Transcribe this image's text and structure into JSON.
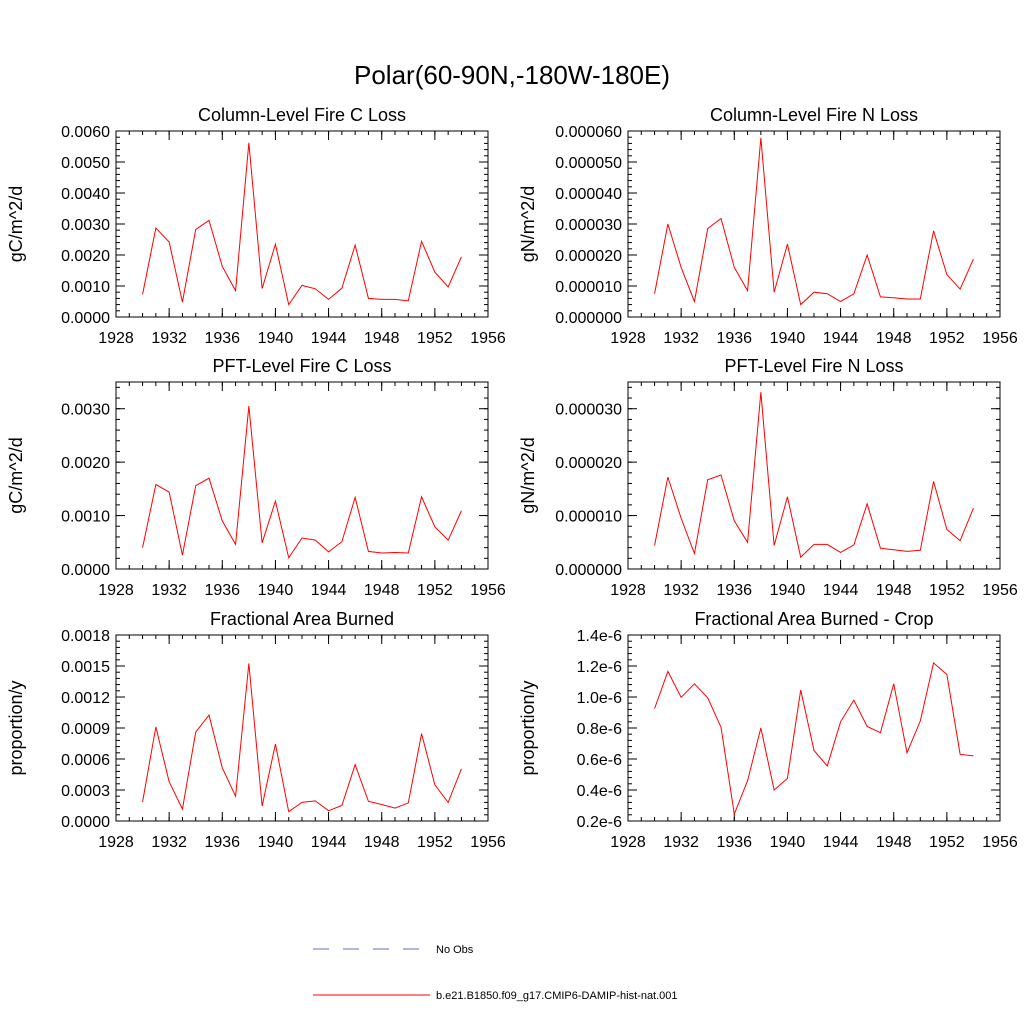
{
  "title": "Polar(60-90N,-180W-180E)",
  "colors": {
    "series": "#ff0000",
    "obs": "#5b6fc4",
    "axis": "#000000"
  },
  "legend": [
    {
      "label": "No Obs",
      "style": "dashed",
      "color": "#5b6fc4"
    },
    {
      "label": "b.e21.B1850.f09_g17.CMIP6-DAMIP-hist-nat.001",
      "style": "solid",
      "color": "#ff0000"
    }
  ],
  "chart_data": [
    {
      "type": "line",
      "title": "Column-Level Fire C Loss",
      "ylabel": "gC/m^2/d",
      "xlim": [
        1928,
        1956
      ],
      "xticks": [
        "1928",
        "1932",
        "1936",
        "1940",
        "1944",
        "1948",
        "1952",
        "1956"
      ],
      "ylim": [
        0,
        0.006
      ],
      "yticks": [
        "0.0000",
        "0.0010",
        "0.0020",
        "0.0030",
        "0.0040",
        "0.0050",
        "0.0060"
      ],
      "x": [
        1930,
        1931,
        1932,
        1933,
        1934,
        1935,
        1936,
        1937,
        1938,
        1939,
        1940,
        1941,
        1942,
        1943,
        1944,
        1945,
        1946,
        1947,
        1948,
        1949,
        1950,
        1951,
        1952,
        1953,
        1954
      ],
      "series": [
        {
          "name": "b.e21.B1850.f09_g17.CMIP6-DAMIP-hist-nat.001",
          "values": [
            0.00073,
            0.00287,
            0.00242,
            0.00048,
            0.00282,
            0.00312,
            0.00163,
            0.00085,
            0.00562,
            0.00092,
            0.00235,
            0.0004,
            0.00102,
            0.00091,
            0.00057,
            0.00093,
            0.00232,
            0.0006,
            0.00057,
            0.00057,
            0.00052,
            0.00244,
            0.00145,
            0.00097,
            0.00194
          ]
        }
      ]
    },
    {
      "type": "line",
      "title": "Column-Level Fire N Loss",
      "ylabel": "gN/m^2/d",
      "xlim": [
        1928,
        1956
      ],
      "xticks": [
        "1928",
        "1932",
        "1936",
        "1940",
        "1944",
        "1948",
        "1952",
        "1956"
      ],
      "ylim": [
        0,
        6e-05
      ],
      "yticks": [
        "0.000000",
        "0.000010",
        "0.000020",
        "0.000030",
        "0.000040",
        "0.000050",
        "0.000060"
      ],
      "x": [
        1930,
        1931,
        1932,
        1933,
        1934,
        1935,
        1936,
        1937,
        1938,
        1939,
        1940,
        1941,
        1942,
        1943,
        1944,
        1945,
        1946,
        1947,
        1948,
        1949,
        1950,
        1951,
        1952,
        1953,
        1954
      ],
      "series": [
        {
          "name": "b.e21.B1850.f09_g17.CMIP6-DAMIP-hist-nat.001",
          "values": [
            7.5e-06,
            3e-05,
            1.6e-05,
            5e-06,
            2.85e-05,
            3.18e-05,
            1.6e-05,
            8.5e-06,
            5.78e-05,
            8e-06,
            2.35e-05,
            4e-06,
            8e-06,
            7.5e-06,
            5e-06,
            7.5e-06,
            2e-05,
            6.5e-06,
            6.2e-06,
            5.8e-06,
            5.8e-06,
            2.78e-05,
            1.37e-05,
            9e-06,
            1.87e-05
          ]
        }
      ]
    },
    {
      "type": "line",
      "title": "PFT-Level Fire C Loss",
      "ylabel": "gC/m^2/d",
      "xlim": [
        1928,
        1956
      ],
      "xticks": [
        "1928",
        "1932",
        "1936",
        "1940",
        "1944",
        "1948",
        "1952",
        "1956"
      ],
      "ylim": [
        0,
        0.0035
      ],
      "yticks": [
        "0.0000",
        "0.0010",
        "0.0020",
        "0.0030"
      ],
      "ytick_values": [
        0,
        0.001,
        0.002,
        0.003
      ],
      "x": [
        1930,
        1931,
        1932,
        1933,
        1934,
        1935,
        1936,
        1937,
        1938,
        1939,
        1940,
        1941,
        1942,
        1943,
        1944,
        1945,
        1946,
        1947,
        1948,
        1949,
        1950,
        1951,
        1952,
        1953,
        1954
      ],
      "series": [
        {
          "name": "b.e21.B1850.f09_g17.CMIP6-DAMIP-hist-nat.001",
          "values": [
            0.0004,
            0.00158,
            0.00144,
            0.00026,
            0.00156,
            0.0017,
            0.0009,
            0.00046,
            0.00305,
            0.00049,
            0.00127,
            0.00021,
            0.00058,
            0.00054,
            0.00032,
            0.00051,
            0.00134,
            0.00033,
            0.0003,
            0.00031,
            0.0003,
            0.00135,
            0.00079,
            0.00054,
            0.00109
          ]
        }
      ]
    },
    {
      "type": "line",
      "title": "PFT-Level Fire N Loss",
      "ylabel": "gN/m^2/d",
      "xlim": [
        1928,
        1956
      ],
      "xticks": [
        "1928",
        "1932",
        "1936",
        "1940",
        "1944",
        "1948",
        "1952",
        "1956"
      ],
      "ylim": [
        0,
        3.5e-05
      ],
      "yticks": [
        "0.000000",
        "0.000010",
        "0.000020",
        "0.000030"
      ],
      "ytick_values": [
        0,
        1e-05,
        2e-05,
        3e-05
      ],
      "x": [
        1930,
        1931,
        1932,
        1933,
        1934,
        1935,
        1936,
        1937,
        1938,
        1939,
        1940,
        1941,
        1942,
        1943,
        1944,
        1945,
        1946,
        1947,
        1948,
        1949,
        1950,
        1951,
        1952,
        1953,
        1954
      ],
      "series": [
        {
          "name": "b.e21.B1850.f09_g17.CMIP6-DAMIP-hist-nat.001",
          "values": [
            4.4e-06,
            1.72e-05,
            9.5e-06,
            2.9e-06,
            1.67e-05,
            1.76e-05,
            9e-06,
            5e-06,
            3.31e-05,
            4.4e-06,
            1.35e-05,
            2.2e-06,
            4.6e-06,
            4.6e-06,
            3.1e-06,
            4.5e-06,
            1.22e-05,
            3.9e-06,
            3.6e-06,
            3.3e-06,
            3.5e-06,
            1.64e-05,
            7.4e-06,
            5.3e-06,
            1.14e-05
          ]
        }
      ]
    },
    {
      "type": "line",
      "title": "Fractional Area Burned",
      "ylabel": "proportion/y",
      "xlim": [
        1928,
        1956
      ],
      "xticks": [
        "1928",
        "1932",
        "1936",
        "1940",
        "1944",
        "1948",
        "1952",
        "1956"
      ],
      "ylim": [
        0,
        0.0018
      ],
      "yticks": [
        "0.0000",
        "0.0003",
        "0.0006",
        "0.0009",
        "0.0012",
        "0.0015",
        "0.0018"
      ],
      "x": [
        1930,
        1931,
        1932,
        1933,
        1934,
        1935,
        1936,
        1937,
        1938,
        1939,
        1940,
        1941,
        1942,
        1943,
        1944,
        1945,
        1946,
        1947,
        1948,
        1949,
        1950,
        1951,
        1952,
        1953,
        1954
      ],
      "series": [
        {
          "name": "b.e21.B1850.f09_g17.CMIP6-DAMIP-hist-nat.001",
          "values": [
            0.000185,
            0.00091,
            0.00038,
            0.000115,
            0.00086,
            0.001025,
            0.000515,
            0.00024,
            0.001525,
            0.000145,
            0.000745,
            9e-05,
            0.00018,
            0.000195,
            0.0001,
            0.00015,
            0.000545,
            0.00019,
            0.00016,
            0.000125,
            0.000175,
            0.000845,
            0.00035,
            0.00018,
            0.000505
          ]
        }
      ]
    },
    {
      "type": "line",
      "title": "Fractional Area Burned - Crop",
      "ylabel": "proportion/y",
      "xlim": [
        1928,
        1956
      ],
      "xticks": [
        "1928",
        "1932",
        "1936",
        "1940",
        "1944",
        "1948",
        "1952",
        "1956"
      ],
      "ylim": [
        2e-07,
        1.4e-06
      ],
      "yticks": [
        "0.2e-6",
        "0.4e-6",
        "0.6e-6",
        "0.8e-6",
        "1.0e-6",
        "1.2e-6",
        "1.4e-6"
      ],
      "ytick_values": [
        2e-07,
        4e-07,
        6e-07,
        8e-07,
        1e-06,
        1.2e-06,
        1.4e-06
      ],
      "x": [
        1930,
        1931,
        1932,
        1933,
        1934,
        1935,
        1936,
        1937,
        1938,
        1939,
        1940,
        1941,
        1942,
        1943,
        1944,
        1945,
        1946,
        1947,
        1948,
        1949,
        1950,
        1951,
        1952,
        1953,
        1954
      ],
      "series": [
        {
          "name": "b.e21.B1850.f09_g17.CMIP6-DAMIP-hist-nat.001",
          "values": [
            9.25e-07,
            1.165e-06,
            9.98e-07,
            1.085e-06,
            9.95e-07,
            8.05e-07,
            2.45e-07,
            4.6e-07,
            8e-07,
            4e-07,
            4.75e-07,
            1.045e-06,
            6.55e-07,
            5.55e-07,
            8.4e-07,
            9.8e-07,
            8.1e-07,
            7.7e-07,
            1.085e-06,
            6.4e-07,
            8.45e-07,
            1.22e-06,
            1.145e-06,
            6.3e-07,
            6.2e-07
          ]
        }
      ]
    }
  ]
}
